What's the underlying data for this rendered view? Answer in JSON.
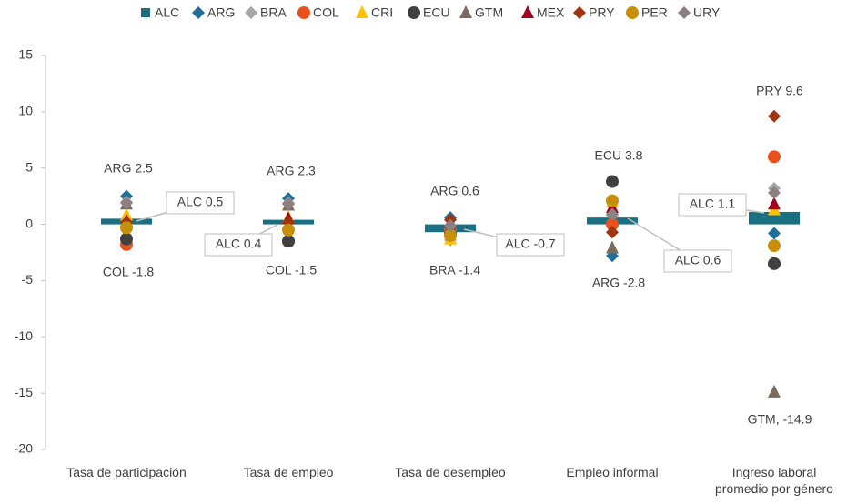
{
  "chart_data": {
    "type": "scatter",
    "categories": [
      "Tasa de participación",
      "Tasa de empleo",
      "Tasa de desempleo",
      "Empleo informal",
      "Ingreso laboral promedio por género"
    ],
    "ylim": [
      -20,
      15
    ],
    "yticks": [
      -20,
      -15,
      -10,
      -5,
      0,
      5,
      10,
      15
    ],
    "series": [
      {
        "name": "ALC",
        "color": "#1b6f82",
        "marker": "bar",
        "values": [
          0.5,
          0.4,
          -0.7,
          0.6,
          1.1
        ]
      },
      {
        "name": "ARG",
        "color": "#1f6f9a",
        "marker": "diamond",
        "values": [
          2.5,
          2.3,
          0.6,
          -2.8,
          -0.8
        ]
      },
      {
        "name": "BRA",
        "color": "#a6a6a6",
        "marker": "diamond",
        "values": [
          2.0,
          1.9,
          -1.4,
          0.8,
          3.2
        ]
      },
      {
        "name": "COL",
        "color": "#e8501c",
        "marker": "circle",
        "values": [
          -1.8,
          -1.5,
          -0.5,
          0.0,
          6.0
        ]
      },
      {
        "name": "CRI",
        "color": "#ffc000",
        "marker": "triangle",
        "values": [
          0.8,
          0.6,
          -1.3,
          2.0,
          1.3
        ]
      },
      {
        "name": "ECU",
        "color": "#404040",
        "marker": "circle",
        "values": [
          -1.3,
          -1.5,
          -0.8,
          3.8,
          -3.5
        ]
      },
      {
        "name": "GTM",
        "color": "#7a6d60",
        "marker": "triangle",
        "values": [
          1.8,
          1.7,
          -0.2,
          -2.1,
          -14.9
        ]
      },
      {
        "name": "MEX",
        "color": "#a50021",
        "marker": "triangle",
        "values": [
          0.3,
          0.5,
          0.2,
          1.5,
          1.8
        ]
      },
      {
        "name": "PRY",
        "color": "#a0340f",
        "marker": "diamond",
        "values": [
          0.2,
          0.2,
          0.4,
          -0.7,
          9.6
        ]
      },
      {
        "name": "PER",
        "color": "#c8900a",
        "marker": "circle",
        "values": [
          -0.3,
          -0.5,
          -1.0,
          2.1,
          -1.9
        ]
      },
      {
        "name": "URY",
        "color": "#8c8080",
        "marker": "diamond",
        "values": [
          1.9,
          1.8,
          -0.1,
          0.9,
          2.8
        ]
      }
    ],
    "annotations": [
      "ARG 2.5",
      "COL -1.8",
      "ALC 0.5",
      "ARG 2.3",
      "COL -1.5",
      "ALC 0.4",
      "ARG 0.6",
      "BRA -1.4",
      "ALC -0.7",
      "ECU 3.8",
      "ARG -2.8",
      "ALC 0.6",
      "PRY 9.6",
      "GTM, -14.9",
      "ALC 1.1"
    ]
  }
}
